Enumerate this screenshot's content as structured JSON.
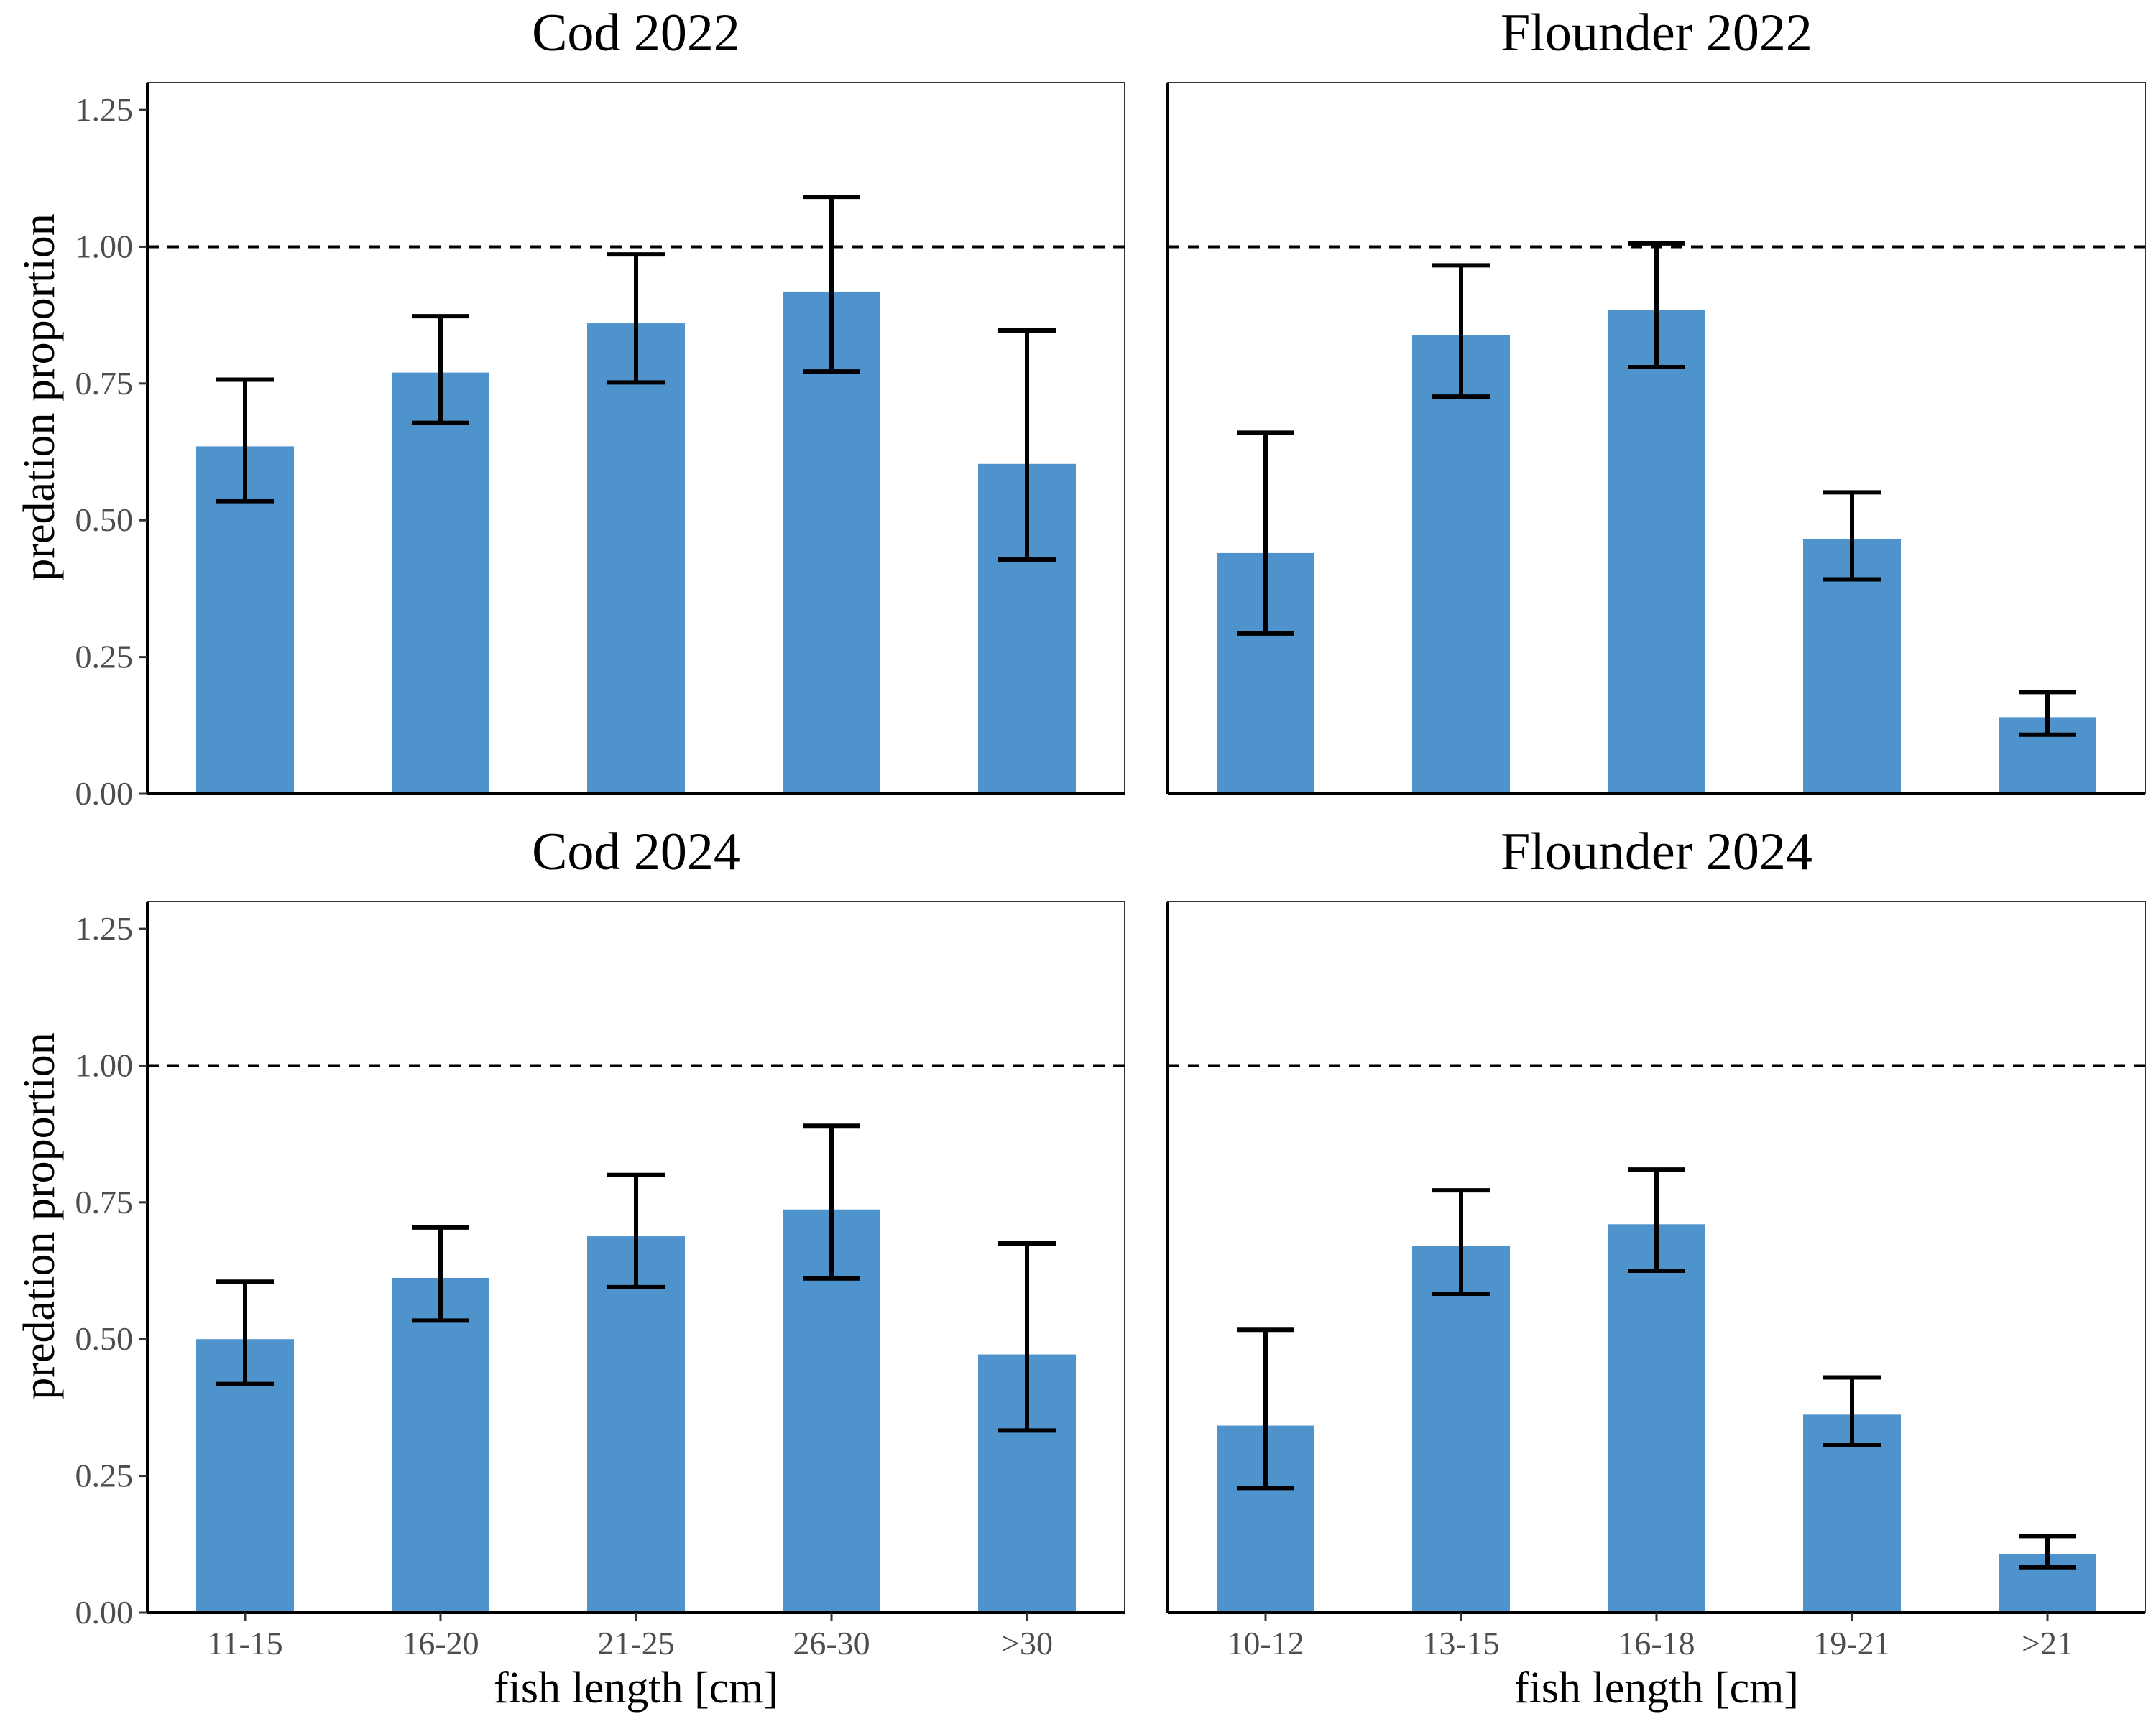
{
  "figure": {
    "ylabel": "predation proportion",
    "xlabel": "fish length [cm]",
    "bar_color": "#4f93cd",
    "reference_line": 1.0
  },
  "chart_data": [
    {
      "type": "bar",
      "title": "Cod 2022",
      "categories": [
        "11-15",
        "16-20",
        "21-25",
        "26-30",
        ">30"
      ],
      "values": [
        0.635,
        0.77,
        0.86,
        0.918,
        0.603
      ],
      "error_low": [
        0.535,
        0.678,
        0.752,
        0.772,
        0.428
      ],
      "error_high": [
        0.757,
        0.873,
        0.986,
        1.091,
        0.847
      ],
      "ylim": [
        0,
        1.3
      ],
      "yticks": [
        "0.00",
        "0.25",
        "0.50",
        "0.75",
        "1.00",
        "1.25"
      ],
      "xlabel": "",
      "ylabel": "predation proportion",
      "show_x_ticks": false
    },
    {
      "type": "bar",
      "title": "Flounder 2022",
      "categories": [
        "10-12",
        "13-15",
        "16-18",
        "19-21",
        ">21"
      ],
      "values": [
        0.44,
        0.838,
        0.885,
        0.465,
        0.14
      ],
      "error_low": [
        0.293,
        0.726,
        0.78,
        0.392,
        0.108
      ],
      "error_high": [
        0.66,
        0.966,
        1.006,
        0.551,
        0.186
      ],
      "ylim": [
        0,
        1.3
      ],
      "yticks": [],
      "xlabel": "",
      "ylabel": "",
      "show_x_ticks": false
    },
    {
      "type": "bar",
      "title": "Cod 2024",
      "categories": [
        "11-15",
        "16-20",
        "21-25",
        "26-30",
        ">30"
      ],
      "values": [
        0.5,
        0.612,
        0.688,
        0.737,
        0.472
      ],
      "error_low": [
        0.418,
        0.534,
        0.595,
        0.611,
        0.333
      ],
      "error_high": [
        0.605,
        0.704,
        0.8,
        0.89,
        0.675
      ],
      "ylim": [
        0,
        1.3
      ],
      "yticks": [
        "0.00",
        "0.25",
        "0.50",
        "0.75",
        "1.00",
        "1.25"
      ],
      "xlabel": "fish length [cm]",
      "ylabel": "predation proportion",
      "show_x_ticks": true
    },
    {
      "type": "bar",
      "title": "Flounder 2024",
      "categories": [
        "10-12",
        "13-15",
        "16-18",
        "19-21",
        ">21"
      ],
      "values": [
        0.342,
        0.67,
        0.71,
        0.362,
        0.107
      ],
      "error_low": [
        0.228,
        0.583,
        0.625,
        0.306,
        0.083
      ],
      "error_high": [
        0.517,
        0.772,
        0.81,
        0.43,
        0.14
      ],
      "ylim": [
        0,
        1.3
      ],
      "yticks": [],
      "xlabel": "fish length [cm]",
      "ylabel": "",
      "show_x_ticks": true
    }
  ]
}
